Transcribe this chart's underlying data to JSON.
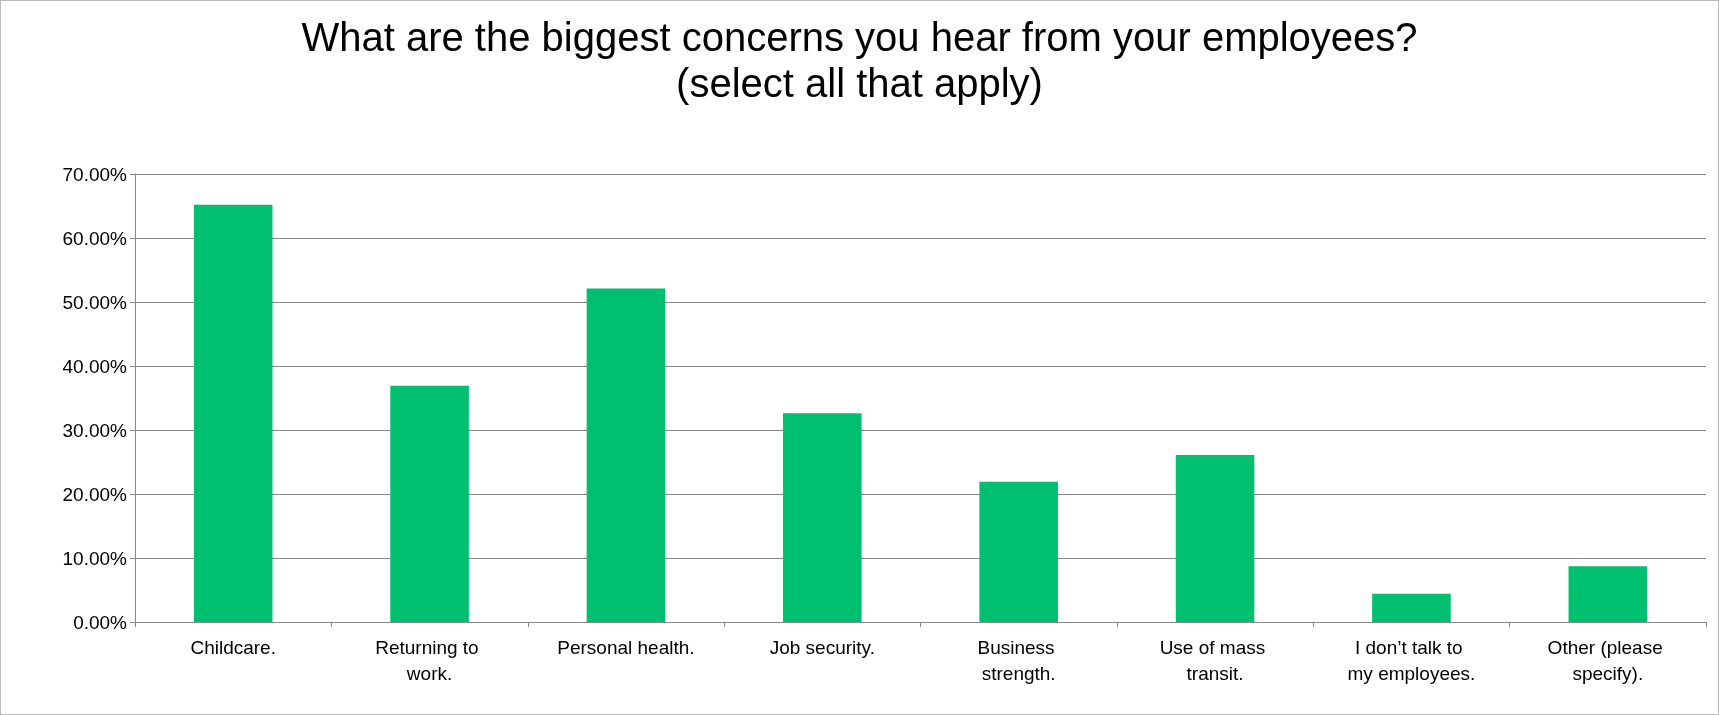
{
  "chart_data": {
    "type": "bar",
    "title": "What are the biggest concerns you hear from your employees?\n(select all that apply)",
    "categories": [
      "Childcare.",
      "Returning to work.",
      "Personal health.",
      "Job security.",
      "Business strength.",
      "Use of mass transit.",
      "I don’t talk to my employees.",
      "Other (please specify)."
    ],
    "values": [
      65.2,
      36.9,
      52.1,
      32.6,
      21.9,
      26.1,
      4.4,
      8.7
    ],
    "color": "#00bf6f",
    "ylim": [
      0,
      70
    ],
    "yticks": [
      {
        "value": 0,
        "label": "0.00%"
      },
      {
        "value": 10,
        "label": "10.00%"
      },
      {
        "value": 20,
        "label": "20.00%"
      },
      {
        "value": 30,
        "label": "30.00%"
      },
      {
        "value": 40,
        "label": "40.00%"
      },
      {
        "value": 50,
        "label": "50.00%"
      },
      {
        "value": 60,
        "label": "60.00%"
      },
      {
        "value": 70,
        "label": "70.00%"
      }
    ],
    "grid": true
  }
}
